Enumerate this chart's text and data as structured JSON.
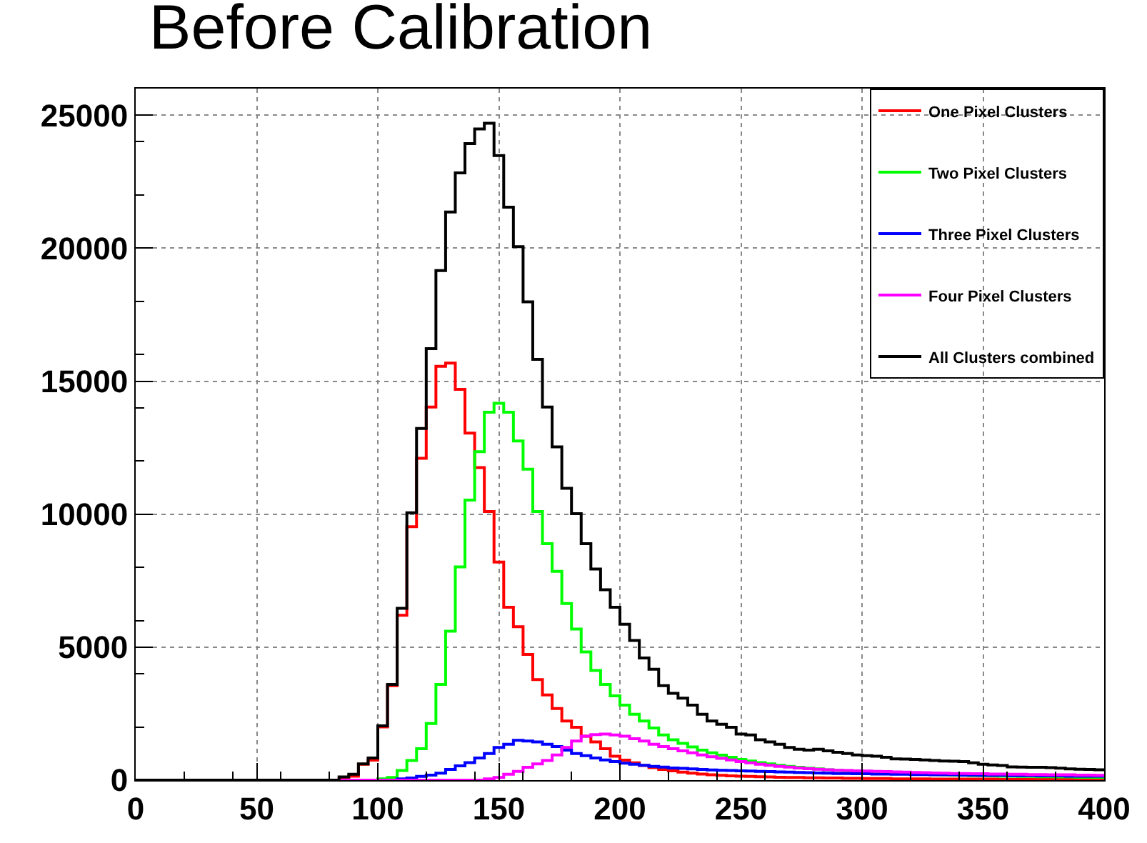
{
  "chart_data": {
    "type": "histogram",
    "title": "Before Calibration",
    "bins": [
      0,
      4,
      8,
      12,
      16,
      20,
      24,
      28,
      32,
      36,
      40,
      44,
      48,
      52,
      56,
      60,
      64,
      68,
      72,
      76,
      80,
      84,
      88,
      92,
      96,
      100,
      104,
      108,
      112,
      116,
      120,
      124,
      128,
      132,
      136,
      140,
      144,
      148,
      152,
      156,
      160,
      164,
      168,
      172,
      176,
      180,
      184,
      188,
      192,
      196,
      200,
      204,
      208,
      212,
      216,
      220,
      224,
      228,
      232,
      236,
      240,
      244,
      248,
      252,
      256,
      260,
      264,
      268,
      272,
      276,
      280,
      284,
      288,
      292,
      296,
      300,
      304,
      308,
      312,
      316,
      320,
      324,
      328,
      332,
      336,
      340,
      344,
      348,
      352,
      356,
      360,
      364,
      368,
      372,
      376,
      380,
      384,
      388,
      392,
      396,
      400
    ],
    "series": [
      {
        "name": "One Pixel Clusters",
        "color": "#ff0000",
        "values": [
          0,
          0,
          0,
          0,
          0,
          0,
          0,
          0,
          0,
          0,
          0,
          0,
          0,
          0,
          0,
          0,
          0,
          0,
          0,
          0,
          0,
          50,
          150,
          600,
          750,
          2000,
          3550,
          6200,
          9530,
          12100,
          14030,
          15560,
          15680,
          14690,
          13050,
          11750,
          10100,
          8200,
          6500,
          5770,
          4730,
          3780,
          3200,
          2690,
          2220,
          1990,
          1650,
          1440,
          1180,
          900,
          750,
          650,
          550,
          470,
          400,
          350,
          300,
          260,
          230,
          200,
          180,
          160,
          150,
          140,
          130,
          120,
          110,
          100,
          100,
          90,
          90,
          80,
          80,
          70,
          70,
          60,
          60,
          60,
          50,
          50,
          50,
          50,
          40,
          40,
          40,
          40,
          40,
          40,
          40,
          30,
          30,
          30,
          30,
          30,
          30,
          30,
          30,
          30,
          30,
          30
        ]
      },
      {
        "name": "Two Pixel Clusters",
        "color": "#00ff00",
        "values": [
          0,
          0,
          0,
          0,
          0,
          0,
          0,
          0,
          0,
          0,
          0,
          0,
          0,
          0,
          0,
          0,
          0,
          0,
          0,
          0,
          0,
          0,
          0,
          0,
          0,
          50,
          100,
          360,
          740,
          1180,
          2130,
          3600,
          5600,
          8020,
          10530,
          12350,
          13830,
          14170,
          13830,
          12750,
          11690,
          10100,
          8890,
          7850,
          6640,
          5680,
          4820,
          4120,
          3600,
          3170,
          2820,
          2480,
          2220,
          1960,
          1700,
          1520,
          1380,
          1250,
          1130,
          1030,
          940,
          860,
          780,
          720,
          660,
          610,
          560,
          520,
          480,
          450,
          420,
          390,
          360,
          340,
          320,
          300,
          280,
          260,
          250,
          240,
          230,
          220,
          210,
          200,
          190,
          180,
          170,
          170,
          160,
          150,
          150,
          140,
          140,
          130,
          130,
          120,
          120,
          110,
          110,
          100
        ]
      },
      {
        "name": "Three Pixel Clusters",
        "color": "#0000ff",
        "values": [
          0,
          0,
          0,
          0,
          0,
          0,
          0,
          0,
          0,
          0,
          0,
          0,
          0,
          0,
          0,
          0,
          0,
          0,
          0,
          0,
          0,
          0,
          0,
          0,
          0,
          0,
          0,
          50,
          80,
          140,
          190,
          260,
          400,
          540,
          660,
          830,
          1000,
          1230,
          1350,
          1500,
          1470,
          1440,
          1350,
          1260,
          1130,
          1000,
          920,
          830,
          760,
          700,
          640,
          600,
          560,
          520,
          490,
          460,
          440,
          420,
          400,
          380,
          370,
          360,
          350,
          340,
          330,
          320,
          310,
          300,
          290,
          280,
          270,
          260,
          250,
          250,
          240,
          240,
          230,
          230,
          220,
          220,
          210,
          210,
          200,
          200,
          200,
          190,
          190,
          180,
          180,
          180,
          170,
          170,
          170,
          160,
          160,
          160,
          150,
          150,
          150,
          150
        ]
      },
      {
        "name": "Four Pixel Clusters",
        "color": "#ff00ff",
        "values": [
          0,
          0,
          0,
          0,
          0,
          0,
          0,
          0,
          0,
          0,
          0,
          0,
          0,
          0,
          0,
          0,
          0,
          0,
          0,
          0,
          0,
          0,
          0,
          0,
          0,
          0,
          0,
          0,
          0,
          0,
          0,
          0,
          0,
          0,
          0,
          0,
          50,
          100,
          220,
          330,
          480,
          610,
          740,
          950,
          1230,
          1470,
          1650,
          1715,
          1730,
          1700,
          1650,
          1560,
          1470,
          1350,
          1260,
          1180,
          1100,
          1030,
          950,
          880,
          820,
          760,
          700,
          650,
          600,
          560,
          520,
          490,
          460,
          430,
          410,
          390,
          370,
          360,
          350,
          340,
          330,
          320,
          310,
          300,
          290,
          280,
          270,
          260,
          250,
          250,
          240,
          240,
          230,
          230,
          220,
          220,
          210,
          210,
          200,
          200,
          200,
          190,
          190,
          180
        ]
      },
      {
        "name": "All Clusters combined",
        "color": "#000000",
        "values": [
          0,
          0,
          0,
          0,
          0,
          0,
          0,
          0,
          0,
          0,
          0,
          0,
          0,
          0,
          0,
          0,
          0,
          0,
          0,
          0,
          0,
          120,
          220,
          610,
          830,
          2040,
          3600,
          6460,
          10050,
          13220,
          16220,
          19160,
          21360,
          22830,
          23930,
          24480,
          24700,
          23480,
          21540,
          20060,
          17980,
          15820,
          14030,
          12530,
          10970,
          10020,
          8890,
          7940,
          7160,
          6500,
          5860,
          5250,
          4590,
          4170,
          3550,
          3260,
          3080,
          2820,
          2480,
          2220,
          2100,
          1990,
          1730,
          1700,
          1520,
          1440,
          1350,
          1230,
          1160,
          1130,
          1160,
          1100,
          1050,
          1000,
          950,
          920,
          900,
          860,
          800,
          790,
          780,
          760,
          740,
          720,
          710,
          700,
          650,
          600,
          570,
          550,
          500,
          490,
          480,
          480,
          470,
          450,
          420,
          410,
          400,
          390
        ]
      }
    ],
    "xlim": [
      0,
      400
    ],
    "ylim": [
      0,
      26000
    ],
    "xticks": [
      0,
      50,
      100,
      150,
      200,
      250,
      300,
      350,
      400
    ],
    "yticks": [
      0,
      5000,
      10000,
      15000,
      20000,
      25000
    ],
    "grid": true,
    "legend": "top right"
  }
}
